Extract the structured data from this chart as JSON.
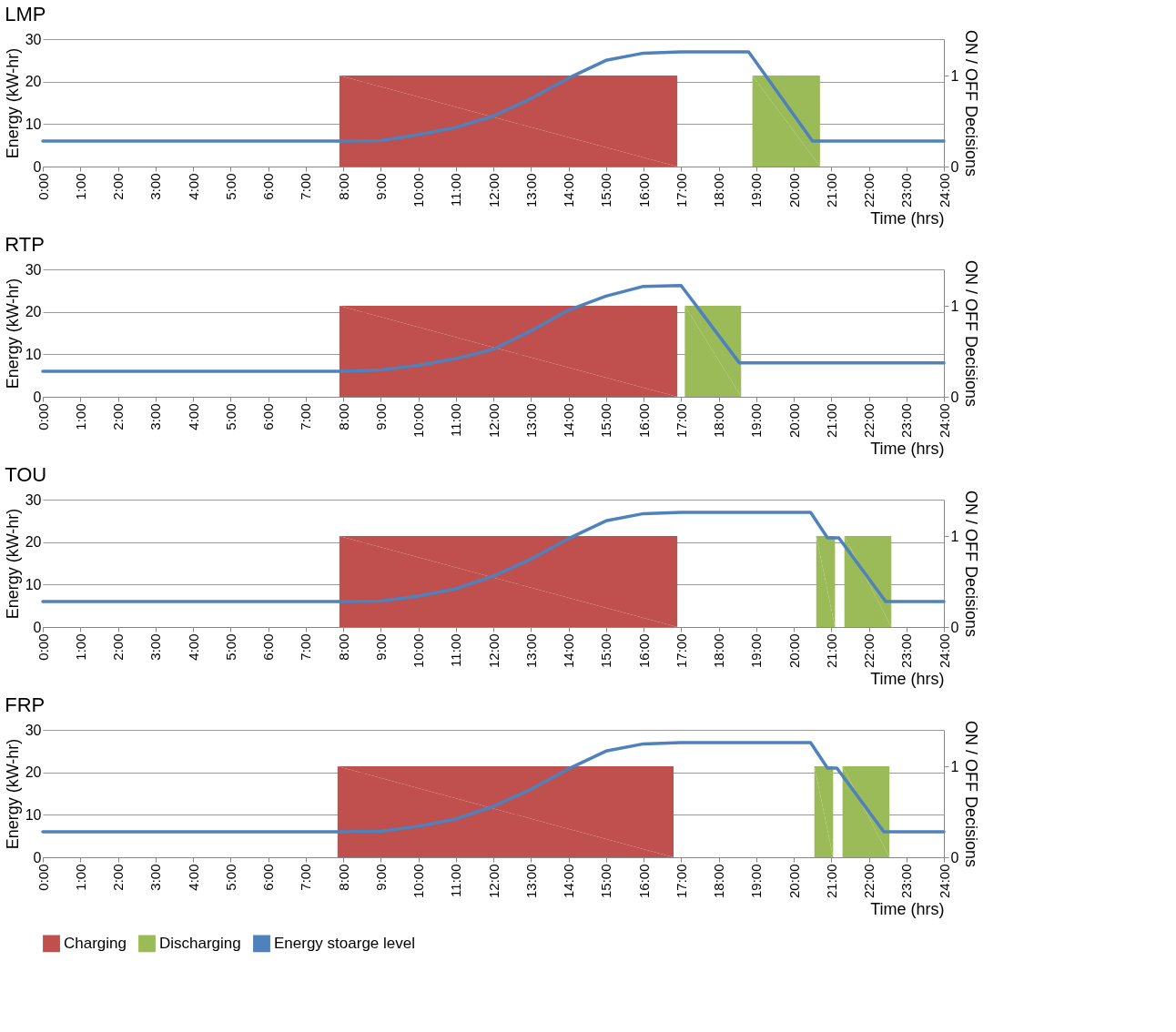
{
  "chart_data": [
    {
      "type": "line",
      "title": "LMP",
      "xlabel": "Time (hrs)",
      "ylabel": "Energy (kW-hr)",
      "y2label": "ON / OFF Decisions",
      "xlim": [
        0,
        24
      ],
      "xticks": [
        {
          "value": 0,
          "label": "0:00"
        },
        {
          "value": 1,
          "label": "1:00"
        },
        {
          "value": 2,
          "label": "2:00"
        },
        {
          "value": 3,
          "label": "3:00"
        },
        {
          "value": 4,
          "label": "4:00"
        },
        {
          "value": 5,
          "label": "5:00"
        },
        {
          "value": 6,
          "label": "6:00"
        },
        {
          "value": 7,
          "label": "7:00"
        },
        {
          "value": 8,
          "label": "8:00"
        },
        {
          "value": 9,
          "label": "9:00"
        },
        {
          "value": 10,
          "label": "10:00"
        },
        {
          "value": 11,
          "label": "11:00"
        },
        {
          "value": 12,
          "label": "12:00"
        },
        {
          "value": 13,
          "label": "13:00"
        },
        {
          "value": 14,
          "label": "14:00"
        },
        {
          "value": 15,
          "label": "15:00"
        },
        {
          "value": 16,
          "label": "16:00"
        },
        {
          "value": 17,
          "label": "17:00"
        },
        {
          "value": 18,
          "label": "18:00"
        },
        {
          "value": 19,
          "label": "19:00"
        },
        {
          "value": 20,
          "label": "20:00"
        },
        {
          "value": 21,
          "label": "21:00"
        },
        {
          "value": 22,
          "label": "22:00"
        },
        {
          "value": 23,
          "label": "23:00"
        },
        {
          "value": 24,
          "label": "24:00"
        }
      ],
      "ylim": [
        0,
        30
      ],
      "yticks": [
        0,
        10,
        20,
        30
      ],
      "y2lim": [
        0,
        1.4
      ],
      "y2ticks": [
        0,
        1
      ],
      "grid": "y",
      "legend": false,
      "series": [
        {
          "type": "area",
          "axis": "y2",
          "color": "#c0504d",
          "x": [
            7.9,
            16.9
          ],
          "values": [
            1,
            1
          ]
        },
        {
          "type": "area",
          "axis": "y2",
          "color": "#9bbb59",
          "x": [
            18.9,
            20.7
          ],
          "values": [
            1,
            1
          ]
        },
        {
          "color": "#4f81bd",
          "x": [
            0,
            8,
            9,
            10,
            11,
            12,
            13,
            14,
            15,
            16,
            17,
            18.8,
            20.5,
            24
          ],
          "values": [
            6,
            6,
            6.1,
            7.5,
            9.2,
            11.9,
            16,
            20.8,
            25,
            26.7,
            27,
            27,
            6,
            6
          ]
        }
      ]
    },
    {
      "type": "line",
      "title": "RTP",
      "xlabel": "Time (hrs)",
      "ylabel": "Energy (kW-hr)",
      "y2label": "ON / OFF Decisions",
      "xlim": [
        0,
        24
      ],
      "xticks": [
        {
          "value": 0,
          "label": "0:00"
        },
        {
          "value": 1,
          "label": "1:00"
        },
        {
          "value": 2,
          "label": "2:00"
        },
        {
          "value": 3,
          "label": "3:00"
        },
        {
          "value": 4,
          "label": "4:00"
        },
        {
          "value": 5,
          "label": "5:00"
        },
        {
          "value": 6,
          "label": "6:00"
        },
        {
          "value": 7,
          "label": "7:00"
        },
        {
          "value": 8,
          "label": "8:00"
        },
        {
          "value": 9,
          "label": "9:00"
        },
        {
          "value": 10,
          "label": "10:00"
        },
        {
          "value": 11,
          "label": "11:00"
        },
        {
          "value": 12,
          "label": "12:00"
        },
        {
          "value": 13,
          "label": "13:00"
        },
        {
          "value": 14,
          "label": "14:00"
        },
        {
          "value": 15,
          "label": "15:00"
        },
        {
          "value": 16,
          "label": "16:00"
        },
        {
          "value": 17,
          "label": "17:00"
        },
        {
          "value": 18,
          "label": "18:00"
        },
        {
          "value": 19,
          "label": "19:00"
        },
        {
          "value": 20,
          "label": "20:00"
        },
        {
          "value": 21,
          "label": "21:00"
        },
        {
          "value": 22,
          "label": "22:00"
        },
        {
          "value": 23,
          "label": "23:00"
        },
        {
          "value": 24,
          "label": "24:00"
        }
      ],
      "ylim": [
        0,
        30
      ],
      "yticks": [
        0,
        10,
        20,
        30
      ],
      "y2lim": [
        0,
        1.4
      ],
      "y2ticks": [
        0,
        1
      ],
      "grid": "y",
      "legend": false,
      "series": [
        {
          "type": "area",
          "axis": "y2",
          "color": "#c0504d",
          "x": [
            7.9,
            16.9
          ],
          "values": [
            1,
            1
          ]
        },
        {
          "type": "area",
          "axis": "y2",
          "color": "#9bbb59",
          "x": [
            17.1,
            18.6
          ],
          "values": [
            1,
            1
          ]
        },
        {
          "color": "#4f81bd",
          "x": [
            0,
            8,
            9,
            10,
            11,
            12,
            13,
            14,
            15,
            16,
            17,
            18.55,
            24
          ],
          "values": [
            6,
            6,
            6.3,
            7.4,
            9,
            11.2,
            15.5,
            20.4,
            23.7,
            26,
            26.2,
            8,
            8
          ]
        }
      ]
    },
    {
      "type": "line",
      "title": "TOU",
      "xlabel": "Time (hrs)",
      "ylabel": "Energy (kW-hr)",
      "y2label": "ON / OFF Decisions",
      "xlim": [
        0,
        24
      ],
      "xticks": [
        {
          "value": 0,
          "label": "0:00"
        },
        {
          "value": 1,
          "label": "1:00"
        },
        {
          "value": 2,
          "label": "2:00"
        },
        {
          "value": 3,
          "label": "3:00"
        },
        {
          "value": 4,
          "label": "4:00"
        },
        {
          "value": 5,
          "label": "5:00"
        },
        {
          "value": 6,
          "label": "6:00"
        },
        {
          "value": 7,
          "label": "7:00"
        },
        {
          "value": 8,
          "label": "8:00"
        },
        {
          "value": 9,
          "label": "9:00"
        },
        {
          "value": 10,
          "label": "10:00"
        },
        {
          "value": 11,
          "label": "11:00"
        },
        {
          "value": 12,
          "label": "12:00"
        },
        {
          "value": 13,
          "label": "13:00"
        },
        {
          "value": 14,
          "label": "14:00"
        },
        {
          "value": 15,
          "label": "15:00"
        },
        {
          "value": 16,
          "label": "16:00"
        },
        {
          "value": 17,
          "label": "17:00"
        },
        {
          "value": 18,
          "label": "18:00"
        },
        {
          "value": 19,
          "label": "19:00"
        },
        {
          "value": 20,
          "label": "20:00"
        },
        {
          "value": 21,
          "label": "21:00"
        },
        {
          "value": 22,
          "label": "22:00"
        },
        {
          "value": 23,
          "label": "23:00"
        },
        {
          "value": 24,
          "label": "24:00"
        }
      ],
      "ylim": [
        0,
        30
      ],
      "yticks": [
        0,
        10,
        20,
        30
      ],
      "y2lim": [
        0,
        1.4
      ],
      "y2ticks": [
        0,
        1
      ],
      "grid": "y",
      "legend": false,
      "series": [
        {
          "type": "area",
          "axis": "y2",
          "color": "#c0504d",
          "x": [
            7.9,
            16.9
          ],
          "values": [
            1,
            1
          ]
        },
        {
          "type": "area",
          "axis": "y2",
          "color": "#9bbb59",
          "x": [
            20.6,
            21.1,
            21.2,
            21.35,
            22.6
          ],
          "values": [
            1,
            1,
            null,
            1,
            1
          ]
        },
        {
          "color": "#4f81bd",
          "x": [
            0,
            8,
            9,
            10,
            11,
            12,
            13,
            14,
            15,
            16,
            17,
            20.45,
            20.9,
            21.2,
            22.45,
            24
          ],
          "values": [
            6,
            6,
            6.1,
            7.3,
            9,
            12,
            16,
            20.8,
            25,
            26.7,
            27,
            27,
            21,
            21,
            6,
            6
          ]
        }
      ]
    },
    {
      "type": "line",
      "title": "FRP",
      "xlabel": "Time (hrs)",
      "ylabel": "Energy (kW-hr)",
      "y2label": "ON / OFF Decisions",
      "xlim": [
        0,
        24
      ],
      "xticks": [
        {
          "value": 0,
          "label": "0:00"
        },
        {
          "value": 1,
          "label": "1:00"
        },
        {
          "value": 2,
          "label": "2:00"
        },
        {
          "value": 3,
          "label": "3:00"
        },
        {
          "value": 4,
          "label": "4:00"
        },
        {
          "value": 5,
          "label": "5:00"
        },
        {
          "value": 6,
          "label": "6:00"
        },
        {
          "value": 7,
          "label": "7:00"
        },
        {
          "value": 8,
          "label": "8:00"
        },
        {
          "value": 9,
          "label": "9:00"
        },
        {
          "value": 10,
          "label": "10:00"
        },
        {
          "value": 11,
          "label": "11:00"
        },
        {
          "value": 12,
          "label": "12:00"
        },
        {
          "value": 13,
          "label": "13:00"
        },
        {
          "value": 14,
          "label": "14:00"
        },
        {
          "value": 15,
          "label": "15:00"
        },
        {
          "value": 16,
          "label": "16:00"
        },
        {
          "value": 17,
          "label": "17:00"
        },
        {
          "value": 18,
          "label": "18:00"
        },
        {
          "value": 19,
          "label": "19:00"
        },
        {
          "value": 20,
          "label": "20:00"
        },
        {
          "value": 21,
          "label": "21:00"
        },
        {
          "value": 22,
          "label": "22:00"
        },
        {
          "value": 23,
          "label": "23:00"
        },
        {
          "value": 24,
          "label": "24:00"
        }
      ],
      "ylim": [
        0,
        30
      ],
      "yticks": [
        0,
        10,
        20,
        30
      ],
      "y2lim": [
        0,
        1.4
      ],
      "y2ticks": [
        0,
        1
      ],
      "grid": "y",
      "legend": "bottom",
      "series": [
        {
          "type": "area",
          "axis": "y2",
          "name": "Charging",
          "color": "#c0504d",
          "x": [
            7.85,
            16.8
          ],
          "values": [
            1,
            1
          ]
        },
        {
          "type": "area",
          "axis": "y2",
          "name": "Discharging",
          "color": "#9bbb59",
          "x": [
            20.55,
            21.05,
            21.2,
            21.3,
            22.55
          ],
          "values": [
            1,
            1,
            null,
            1,
            1
          ]
        },
        {
          "name": "Energy stoarge level",
          "color": "#4f81bd",
          "x": [
            0,
            8,
            9,
            10,
            11,
            12,
            13,
            14,
            15,
            16,
            17,
            20.45,
            20.9,
            21.15,
            22.4,
            24
          ],
          "values": [
            6,
            6,
            6.1,
            7.3,
            9,
            12,
            16,
            20.8,
            25,
            26.7,
            27,
            27,
            21,
            21,
            6,
            6
          ]
        }
      ]
    }
  ]
}
